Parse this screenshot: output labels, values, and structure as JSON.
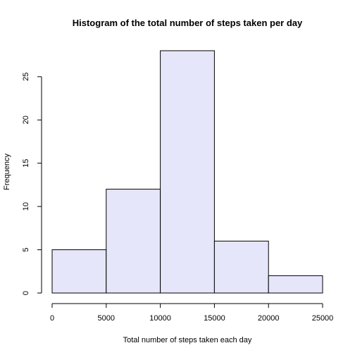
{
  "chart_data": {
    "type": "bar",
    "title": "Histogram of the total number of steps taken per day",
    "xlabel": "Total number of steps taken each day",
    "ylabel": "Frequency",
    "bins": [
      {
        "from": 0,
        "to": 5000,
        "count": 5
      },
      {
        "from": 5000,
        "to": 10000,
        "count": 12
      },
      {
        "from": 10000,
        "to": 15000,
        "count": 28
      },
      {
        "from": 15000,
        "to": 20000,
        "count": 6
      },
      {
        "from": 20000,
        "to": 25000,
        "count": 2
      }
    ],
    "xlim": [
      0,
      25000
    ],
    "ylim": [
      0,
      28
    ],
    "x_ticks": [
      0,
      5000,
      10000,
      15000,
      20000,
      25000
    ],
    "x_tick_labels": [
      "0",
      "5000",
      "10000",
      "15000",
      "20000",
      "25000"
    ],
    "y_ticks": [
      0,
      5,
      10,
      15,
      20,
      25
    ],
    "y_tick_labels": [
      "0",
      "5",
      "10",
      "15",
      "20",
      "25"
    ],
    "bar_color": "#e6e6fa",
    "grid": false,
    "legend": "none"
  }
}
